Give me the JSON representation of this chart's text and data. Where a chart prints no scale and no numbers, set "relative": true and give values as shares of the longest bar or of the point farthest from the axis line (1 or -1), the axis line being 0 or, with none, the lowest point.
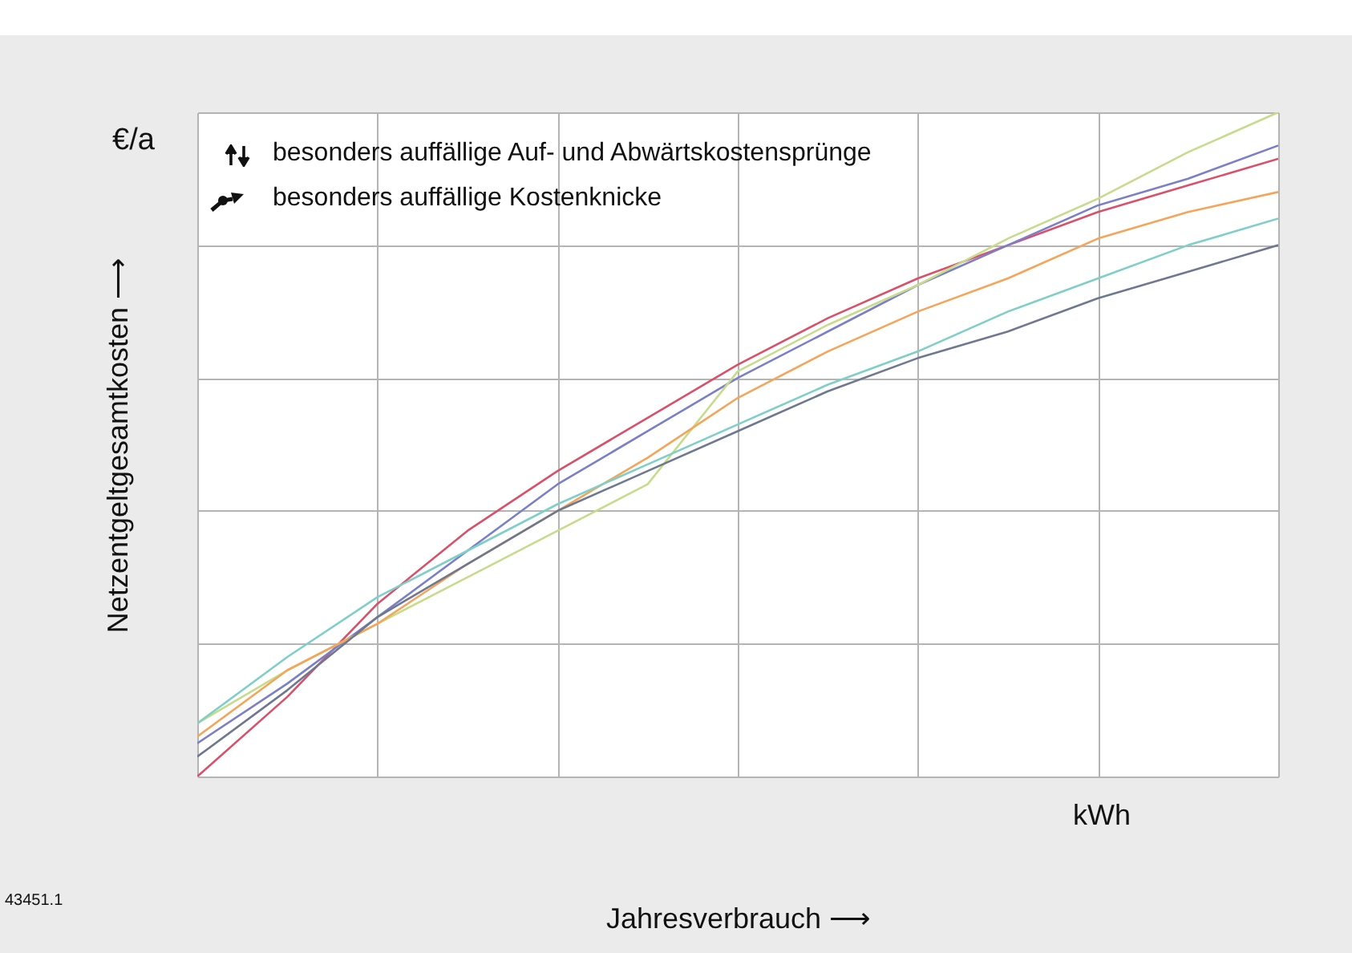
{
  "chart_data": {
    "type": "line",
    "relative": true,
    "xlabel": "Jahresverbrauch ⟶",
    "ylabel": "Netzentgeltgesamtkosten ⟶",
    "annotations": [
      "€/a",
      "besonders auffällige Auf- und Abwärtskostensprünge",
      "besonders auffällige Kostenknicke",
      "kWh",
      "43451.1"
    ],
    "categories": [
      null,
      null,
      null,
      null,
      null,
      null,
      null,
      null,
      null,
      null,
      null,
      null,
      null
    ],
    "grid": true,
    "line_style": "solid",
    "series": [
      {
        "color": "#d9506a",
        "values": [
          0.0,
          0.12,
          0.26,
          0.37,
          0.46,
          0.54,
          0.62,
          0.69,
          0.75,
          0.8,
          0.85,
          0.89,
          0.93
        ]
      },
      {
        "color": "#7a7fc8",
        "values": [
          0.05,
          0.14,
          0.24,
          0.34,
          0.44,
          0.52,
          0.6,
          0.67,
          0.74,
          0.8,
          0.86,
          0.9,
          0.95
        ]
      },
      {
        "color": "#c6dc8c",
        "values": [
          0.08,
          0.16,
          0.23,
          0.3,
          0.37,
          0.44,
          0.61,
          0.68,
          0.74,
          0.81,
          0.87,
          0.94,
          1.0
        ]
      },
      {
        "color": "#f5a55a",
        "values": [
          0.06,
          0.16,
          0.23,
          0.32,
          0.4,
          0.48,
          0.57,
          0.64,
          0.7,
          0.75,
          0.81,
          0.85,
          0.88
        ]
      },
      {
        "color": "#7fcfc8",
        "values": [
          0.08,
          0.18,
          0.27,
          0.34,
          0.41,
          0.47,
          0.53,
          0.59,
          0.64,
          0.7,
          0.75,
          0.8,
          0.84
        ]
      },
      {
        "color": "#6e7890",
        "values": [
          0.03,
          0.13,
          0.24,
          0.32,
          0.4,
          0.46,
          0.52,
          0.58,
          0.63,
          0.67,
          0.72,
          0.76,
          0.8
        ]
      }
    ]
  }
}
